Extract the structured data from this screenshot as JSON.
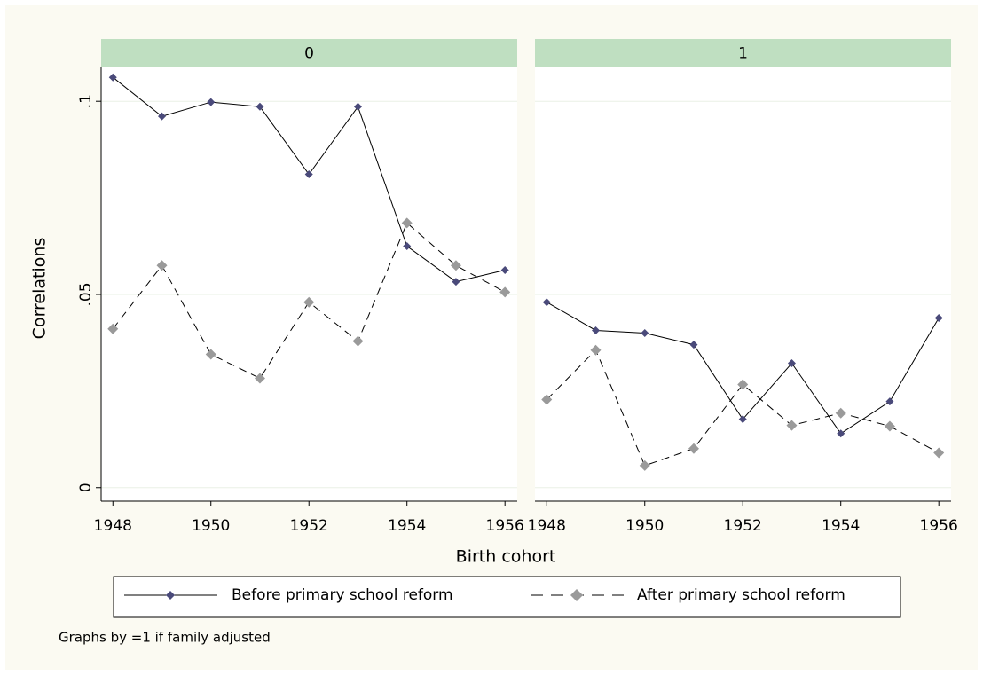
{
  "chart_data": [
    {
      "type": "line",
      "title": "0",
      "x": [
        1948,
        1949,
        1950,
        1951,
        1952,
        1953,
        1954,
        1955,
        1956
      ],
      "series": [
        {
          "name": "Before primary school reform",
          "color": "#4a4a7a",
          "line_style": "solid",
          "marker": "small-diamond",
          "values": [
            0.1062,
            0.0961,
            0.0998,
            0.0986,
            0.0811,
            0.0986,
            0.0625,
            0.0533,
            0.0563
          ]
        },
        {
          "name": "After primary school reform",
          "color": "#9a9a9a",
          "line_style": "dashed",
          "marker": "diamond",
          "values": [
            0.0411,
            0.0575,
            0.0345,
            0.0283,
            0.048,
            0.0379,
            0.0685,
            0.0575,
            0.0506
          ]
        }
      ],
      "xlim": [
        1947.76,
        1956.25
      ],
      "xticks": [
        1948,
        1950,
        1952,
        1954,
        1956
      ],
      "ylim": [
        -0.0035,
        0.109
      ],
      "yticks": [
        0,
        {
          "value": 0.05,
          "label": ".05"
        },
        {
          "value": 0.1,
          "label": ".1"
        }
      ],
      "grid": true
    },
    {
      "type": "line",
      "title": "1",
      "x": [
        1948,
        1949,
        1950,
        1951,
        1952,
        1953,
        1954,
        1955,
        1956
      ],
      "series": [
        {
          "name": "Before primary school reform",
          "color": "#4a4a7a",
          "line_style": "solid",
          "marker": "small-diamond",
          "values": [
            0.048,
            0.0407,
            0.04,
            0.037,
            0.0177,
            0.0322,
            0.014,
            0.0223,
            0.0439
          ]
        },
        {
          "name": "After primary school reform",
          "color": "#9a9a9a",
          "line_style": "dashed",
          "marker": "diamond",
          "values": [
            0.0228,
            0.0356,
            0.0057,
            0.0101,
            0.0267,
            0.0161,
            0.0193,
            0.0159,
            0.009
          ]
        }
      ],
      "xlim": [
        1947.76,
        1956.25
      ],
      "xticks": [
        1948,
        1950,
        1952,
        1954,
        1956
      ],
      "ylim": [
        -0.0035,
        0.109
      ],
      "yticks": [
        0,
        {
          "value": 0.05,
          "label": ".05"
        },
        {
          "value": 0.1,
          "label": ".1"
        }
      ],
      "grid": true
    }
  ],
  "ylabel": "Correlations",
  "xlabel": "Birth cohort",
  "note": "Graphs by =1 if family adjusted"
}
